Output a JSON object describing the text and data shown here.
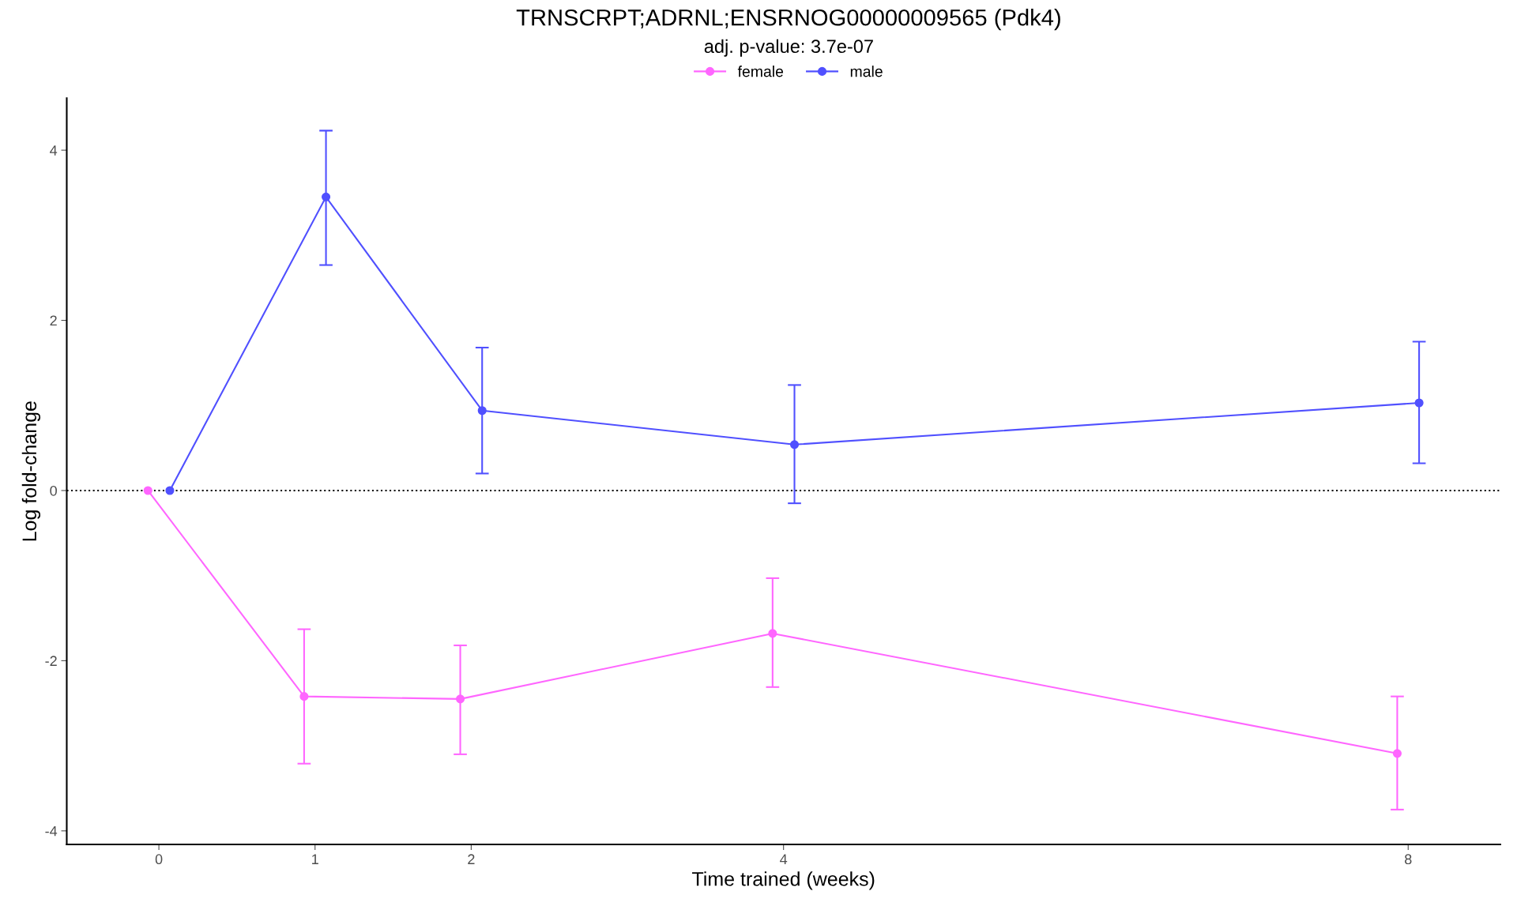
{
  "chart_data": {
    "type": "line",
    "title": "TRNSCRPT;ADRNL;ENSRNOG00000009565 (Pdk4)",
    "subtitle": "adj. p-value: 3.7e-07",
    "xlabel": "Time trained (weeks)",
    "ylabel": "Log fold-change",
    "series": [
      {
        "name": "female",
        "color": "#ff66ff",
        "x": [
          -0.07,
          0.93,
          1.93,
          3.93,
          7.93
        ],
        "values": [
          0,
          -2.42,
          -2.45,
          -1.68,
          -3.09
        ],
        "errors": [
          null,
          [
            -3.21,
            -1.63
          ],
          [
            -3.1,
            -1.82
          ],
          [
            -2.31,
            -1.03
          ],
          [
            -3.75,
            -2.42
          ]
        ]
      },
      {
        "name": "male",
        "color": "#5050ff",
        "x": [
          0.07,
          1.07,
          2.07,
          4.07,
          8.07
        ],
        "values": [
          0,
          3.45,
          0.94,
          0.54,
          1.03
        ],
        "errors": [
          null,
          [
            2.65,
            4.23
          ],
          [
            0.2,
            1.68
          ],
          [
            -0.15,
            1.24
          ],
          [
            0.32,
            1.75
          ]
        ]
      }
    ],
    "xlim": [
      -0.59,
      8.59
    ],
    "xticks": [
      0,
      1,
      2,
      4,
      8
    ],
    "ylim": [
      -4.16,
      4.61
    ],
    "yticks": [
      -4,
      -2,
      0,
      2,
      4
    ],
    "ref_lines": [
      {
        "axis": "y",
        "value": 0,
        "color": "#000000",
        "line_style": "dotted"
      }
    ],
    "grid": false,
    "legend": "top",
    "marker": "circle",
    "line_style": "solid"
  }
}
